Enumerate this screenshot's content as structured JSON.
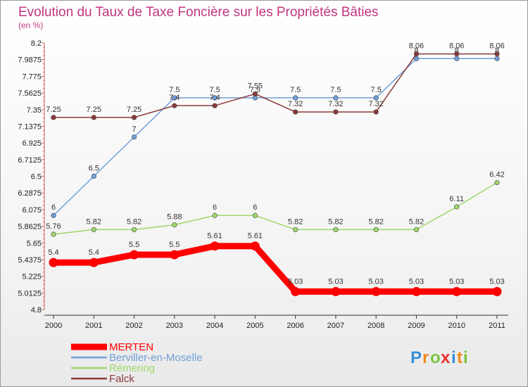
{
  "chart_data": {
    "type": "line",
    "title": "Evolution du Taux de Taxe Foncière sur les Propriétés Bâties",
    "subtitle": "(en %)",
    "xlabel": "",
    "ylabel": "",
    "x": [
      "2000",
      "2001",
      "2002",
      "2003",
      "2004",
      "2005",
      "2006",
      "2007",
      "2008",
      "2009",
      "2010",
      "2011"
    ],
    "ylim": [
      4.8,
      8.2
    ],
    "yticks": [
      "8.2",
      "7.9875",
      "7.775",
      "7.5625",
      "7.35",
      "7.1375",
      "6.925",
      "6.7125",
      "6.5",
      "6.2875",
      "6.075",
      "5.8625",
      "5.65",
      "5.4375",
      "5.225",
      "5.0125",
      "4.8"
    ],
    "grid": false,
    "legend_position": "bottom-left",
    "series": [
      {
        "name": "MERTEN",
        "color": "#ff0000",
        "values": [
          5.4,
          5.4,
          5.5,
          5.5,
          5.61,
          5.61,
          5.03,
          5.03,
          5.03,
          5.03,
          5.03,
          5.03
        ],
        "labels": [
          "5.4",
          "5.4",
          "5.5",
          "5.5",
          "5.61",
          "5.61",
          "5.03",
          "5.03",
          "5.03",
          "5.03",
          "5.03",
          "5.03"
        ]
      },
      {
        "name": "Berviller-en-Moselle",
        "color": "#6f9fd8",
        "values": [
          6,
          6.5,
          7,
          7.5,
          7.5,
          7.5,
          7.5,
          7.5,
          7.5,
          8,
          8,
          8
        ],
        "labels": [
          "6",
          "6.5",
          "7",
          "7.5",
          "7.5",
          "7.5",
          "7.5",
          "7.5",
          "7.5",
          "8",
          "8",
          "8"
        ]
      },
      {
        "name": "Rémering",
        "color": "#9ed86a",
        "values": [
          5.76,
          5.82,
          5.82,
          5.88,
          6,
          6,
          5.82,
          5.82,
          5.82,
          5.82,
          6.11,
          6.42
        ],
        "labels": [
          "5.76",
          "5.82",
          "5.82",
          "5.88",
          "6",
          "6",
          "5.82",
          "5.82",
          "5.82",
          "5.82",
          "6.11",
          "6.42"
        ]
      },
      {
        "name": "Falck",
        "color": "#8b3a3a",
        "values": [
          7.25,
          7.25,
          7.25,
          7.4,
          7.4,
          7.55,
          7.32,
          7.32,
          7.32,
          8.06,
          8.06,
          8.06
        ],
        "labels": [
          "7.25",
          "7.25",
          "7.25",
          "7.4",
          "7.4",
          "7.55",
          "7.32",
          "7.32",
          "7.32",
          "8.06",
          "8.06",
          "8.06"
        ]
      }
    ]
  },
  "brand": {
    "letters": [
      "P",
      "r",
      "o",
      "x",
      "i",
      "t",
      "i"
    ],
    "colors": [
      "#3a8fd6",
      "#f08a1c",
      "#7cc243",
      "#e5322d",
      "#3a8fd6",
      "#f08a1c",
      "#7cc243"
    ]
  }
}
